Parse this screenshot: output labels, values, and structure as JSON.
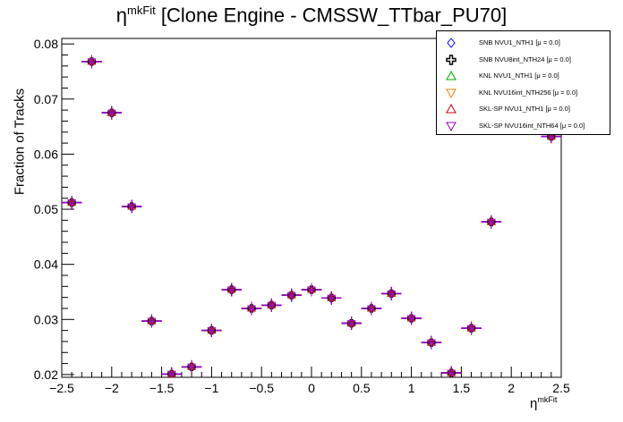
{
  "title": {
    "main": "η",
    "sup": "mkFit",
    "rest": " [Clone Engine - CMSSW_TTbar_PU70]"
  },
  "xlabel": {
    "main": "η",
    "sup": "mkFit"
  },
  "ylabel": "Fraction of Tracks",
  "legend": [
    {
      "label": "SNB NVU1_NTH1 [μ =  0.0]",
      "color": "#0000ff",
      "marker": "diamond-open"
    },
    {
      "label": "SNB NVU8int_NTH24 [μ =  0.0]",
      "color": "#000000",
      "marker": "cross-open"
    },
    {
      "label": "KNL NVU1_NTH1 [μ =  0.0]",
      "color": "#00aa00",
      "marker": "triangle-up-open"
    },
    {
      "label": "KNL NVU16int_NTH256 [μ =  0.0]",
      "color": "#ff8000",
      "marker": "triangle-down-open"
    },
    {
      "label": "SKL-SP NVU1_NTH1 [μ =  0.0]",
      "color": "#cc0000",
      "marker": "triangle-up-open"
    },
    {
      "label": "SKL-SP NVU16int_NTH64 [μ =  0.0]",
      "color": "#9900cc",
      "marker": "triangle-down-open"
    }
  ],
  "chart_data": {
    "type": "scatter",
    "title": "η^mkFit [Clone Engine - CMSSW_TTbar_PU70]",
    "xlabel": "η^mkFit",
    "ylabel": "Fraction of Tracks",
    "xlim": [
      -2.5,
      2.5
    ],
    "ylim": [
      0.0195,
      0.081
    ],
    "xticks": [
      "−2.5",
      "−2",
      "−1.5",
      "−1",
      "−0.5",
      "0",
      "0.5",
      "1",
      "1.5",
      "2",
      "2.5"
    ],
    "yticks": [
      "0.02",
      "0.03",
      "0.04",
      "0.05",
      "0.06",
      "0.07",
      "0.08"
    ],
    "x": [
      -2.4,
      -2.2,
      -2.0,
      -1.8,
      -1.6,
      -1.4,
      -1.2,
      -1.0,
      -0.8,
      -0.6,
      -0.4,
      -0.2,
      0.0,
      0.2,
      0.4,
      0.6,
      0.8,
      1.0,
      1.2,
      1.4,
      1.6,
      1.8,
      2.4
    ],
    "y": [
      0.0512,
      0.0768,
      0.0675,
      0.0505,
      0.0297,
      0.0201,
      0.0214,
      0.028,
      0.0354,
      0.032,
      0.0326,
      0.0344,
      0.0354,
      0.0339,
      0.0293,
      0.032,
      0.0347,
      0.0302,
      0.0258,
      0.0203,
      0.0284,
      0.0477,
      0.0632
    ],
    "y_error": 0.0012,
    "x_halfwidth": 0.1,
    "series": [
      {
        "name": "SNB NVU1_NTH1 [μ =  0.0]"
      },
      {
        "name": "SNB NVU8int_NTH24 [μ =  0.0]"
      },
      {
        "name": "KNL NVU1_NTH1 [μ =  0.0]"
      },
      {
        "name": "KNL NVU16int_NTH256 [μ =  0.0]"
      },
      {
        "name": "SKL-SP NVU1_NTH1 [μ =  0.0]"
      },
      {
        "name": "SKL-SP NVU16int_NTH64 [μ =  0.0]"
      }
    ],
    "legend_position": "top-right",
    "grid": false
  }
}
